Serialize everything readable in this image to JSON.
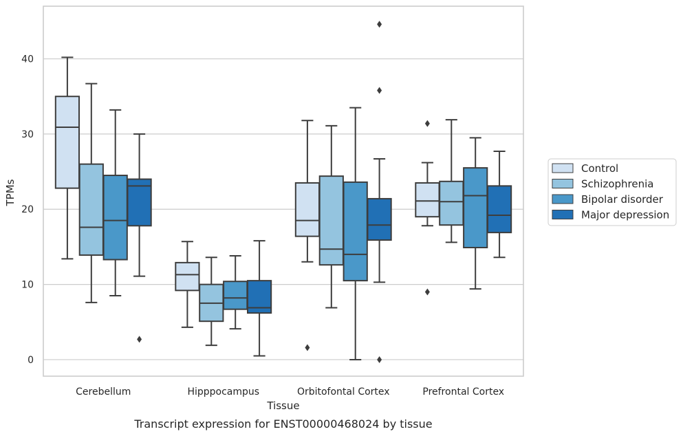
{
  "chart_data": {
    "type": "box",
    "title": "Transcript expression for ENST00000468024 by tissue",
    "xlabel": "Tissue",
    "ylabel": "TPMs",
    "ylim": [
      -2.2,
      47
    ],
    "yticks": [
      0,
      10,
      20,
      30,
      40
    ],
    "grid": "horizontal",
    "legend_position": "right",
    "categories": [
      "Cerebellum",
      "Hipppocampus",
      "Orbitofontal Cortex",
      "Prefrontal Cortex"
    ],
    "series": [
      {
        "name": "Control",
        "color": "#d0e1f2",
        "boxes": [
          {
            "whisker_low": 13.4,
            "q1": 22.8,
            "median": 30.9,
            "q3": 35.0,
            "whisker_high": 40.2,
            "outliers": []
          },
          {
            "whisker_low": 4.3,
            "q1": 9.2,
            "median": 11.3,
            "q3": 12.9,
            "whisker_high": 15.7,
            "outliers": []
          },
          {
            "whisker_low": 13.0,
            "q1": 16.4,
            "median": 18.5,
            "q3": 23.5,
            "whisker_high": 31.8,
            "outliers": [
              1.6
            ]
          },
          {
            "whisker_low": 17.8,
            "q1": 19.0,
            "median": 21.1,
            "q3": 23.5,
            "whisker_high": 26.2,
            "outliers": [
              31.4,
              9.0
            ]
          }
        ]
      },
      {
        "name": "Schizophrenia",
        "color": "#94c4df",
        "boxes": [
          {
            "whisker_low": 7.6,
            "q1": 13.9,
            "median": 17.6,
            "q3": 26.0,
            "whisker_high": 36.7,
            "outliers": []
          },
          {
            "whisker_low": 1.9,
            "q1": 5.1,
            "median": 7.5,
            "q3": 10.0,
            "whisker_high": 13.6,
            "outliers": []
          },
          {
            "whisker_low": 6.9,
            "q1": 12.6,
            "median": 14.7,
            "q3": 24.4,
            "whisker_high": 31.1,
            "outliers": []
          },
          {
            "whisker_low": 15.6,
            "q1": 17.9,
            "median": 21.0,
            "q3": 23.7,
            "whisker_high": 31.9,
            "outliers": []
          }
        ]
      },
      {
        "name": "Bipolar disorder",
        "color": "#4a98c9",
        "boxes": [
          {
            "whisker_low": 8.5,
            "q1": 13.3,
            "median": 18.5,
            "q3": 24.5,
            "whisker_high": 33.2,
            "outliers": []
          },
          {
            "whisker_low": 4.1,
            "q1": 6.7,
            "median": 8.2,
            "q3": 10.4,
            "whisker_high": 13.8,
            "outliers": []
          },
          {
            "whisker_low": 0.0,
            "q1": 10.5,
            "median": 14.0,
            "q3": 23.6,
            "whisker_high": 33.5,
            "outliers": []
          },
          {
            "whisker_low": 9.4,
            "q1": 14.9,
            "median": 21.8,
            "q3": 25.5,
            "whisker_high": 29.5,
            "outliers": []
          }
        ]
      },
      {
        "name": "Major depression",
        "color": "#2170b5",
        "boxes": [
          {
            "whisker_low": 11.1,
            "q1": 17.8,
            "median": 23.1,
            "q3": 24.0,
            "whisker_high": 30.0,
            "outliers": [
              2.7
            ]
          },
          {
            "whisker_low": 0.5,
            "q1": 6.2,
            "median": 6.9,
            "q3": 10.5,
            "whisker_high": 15.8,
            "outliers": []
          },
          {
            "whisker_low": 10.3,
            "q1": 15.9,
            "median": 17.9,
            "q3": 21.4,
            "whisker_high": 26.7,
            "outliers": [
              35.8,
              44.6,
              0.0
            ]
          },
          {
            "whisker_low": 13.6,
            "q1": 16.9,
            "median": 19.2,
            "q3": 23.1,
            "whisker_high": 27.7,
            "outliers": []
          }
        ]
      }
    ]
  }
}
